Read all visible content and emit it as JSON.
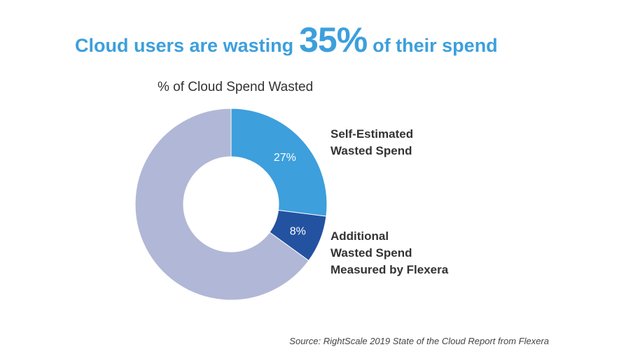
{
  "headline": {
    "prefix": "Cloud users are wasting",
    "highlight": "35%",
    "suffix": "of their spend"
  },
  "chart_data": {
    "type": "pie",
    "subtitle": "% of Cloud Spend Wasted",
    "slices": [
      {
        "label": "Self-Estimated\nWasted Spend",
        "value": 27,
        "display": "27%",
        "color": "#3d9fdc"
      },
      {
        "label": "Additional\nWasted Spend\nMeasured by Flexera",
        "value": 8,
        "display": "8%",
        "color": "#2352a1"
      },
      {
        "label": "",
        "value": 65,
        "display": "",
        "color": "#b1b7d6"
      }
    ],
    "donut": true,
    "start_angle": "top",
    "direction": "clockwise"
  },
  "source": "Source: RightScale 2019 State of the Cloud Report from Flexera"
}
